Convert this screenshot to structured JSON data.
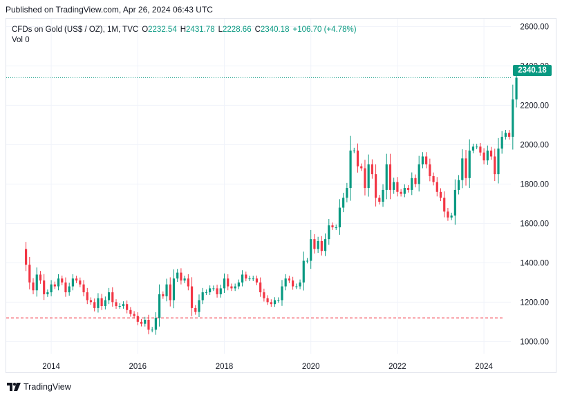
{
  "header": {
    "published": "Published on TradingView.com, Apr 26, 2024 06:43 UTC"
  },
  "legend": {
    "symbol": "CFDs on Gold (US$ / OZ), 1M, TVC",
    "open_label": "O",
    "open": "2232.54",
    "high_label": "H",
    "high": "2431.78",
    "low_label": "L",
    "low": "2228.66",
    "close_label": "C",
    "close": "2340.18",
    "change": "+106.70 (+4.78%)",
    "vol_label": "Vol",
    "vol": "0"
  },
  "last_price_tag": "2340.18",
  "brand": "TradingView",
  "colors": {
    "up": "#089981",
    "down": "#f23645",
    "grid": "#f0f3fa",
    "text": "#131722"
  },
  "chart_data": {
    "type": "candlestick",
    "interval": "monthly",
    "x_ticks": [
      "2014",
      "2016",
      "2018",
      "2020",
      "2022",
      "2024"
    ],
    "y_ticks": [
      "1000.00",
      "1200.00",
      "1400.00",
      "1600.00",
      "1800.00",
      "2000.00",
      "2200.00",
      "2400.00",
      "2600.00"
    ],
    "ylim": [
      938,
      2640
    ],
    "reference_lines": [
      {
        "value": 2340.18,
        "style": "dotted",
        "color": "#089981"
      },
      {
        "value": 1120,
        "style": "dashed",
        "color": "#f23645"
      }
    ],
    "close": [
      1390,
      1300,
      1260,
      1340,
      1310,
      1240,
      1250,
      1290,
      1280,
      1320,
      1300,
      1250,
      1280,
      1320,
      1310,
      1290,
      1250,
      1210,
      1200,
      1170,
      1220,
      1180,
      1210,
      1250,
      1200,
      1180,
      1180,
      1190,
      1160,
      1140,
      1130,
      1100,
      1090,
      1110,
      1060,
      1060,
      1120,
      1240,
      1230,
      1290,
      1210,
      1320,
      1350,
      1310,
      1320,
      1280,
      1170,
      1150,
      1210,
      1250,
      1250,
      1270,
      1270,
      1240,
      1270,
      1320,
      1280,
      1270,
      1280,
      1300,
      1340,
      1320,
      1320,
      1320,
      1300,
      1250,
      1220,
      1200,
      1190,
      1210,
      1210,
      1280,
      1320,
      1310,
      1280,
      1280,
      1300,
      1410,
      1410,
      1520,
      1470,
      1510,
      1460,
      1520,
      1590,
      1580,
      1580,
      1680,
      1730,
      1780,
      1970,
      1970,
      1890,
      1880,
      1780,
      1900,
      1850,
      1730,
      1710,
      1770,
      1900,
      1770,
      1810,
      1760,
      1750,
      1780,
      1770,
      1830,
      1800,
      1900,
      1940,
      1900,
      1840,
      1810,
      1760,
      1730,
      1660,
      1630,
      1640,
      1770,
      1820,
      1930,
      1830,
      1970,
      1990,
      1990,
      1960,
      1920,
      1970,
      1940,
      1850,
      1980,
      2040,
      2060,
      2040,
      2230,
      2340
    ]
  }
}
